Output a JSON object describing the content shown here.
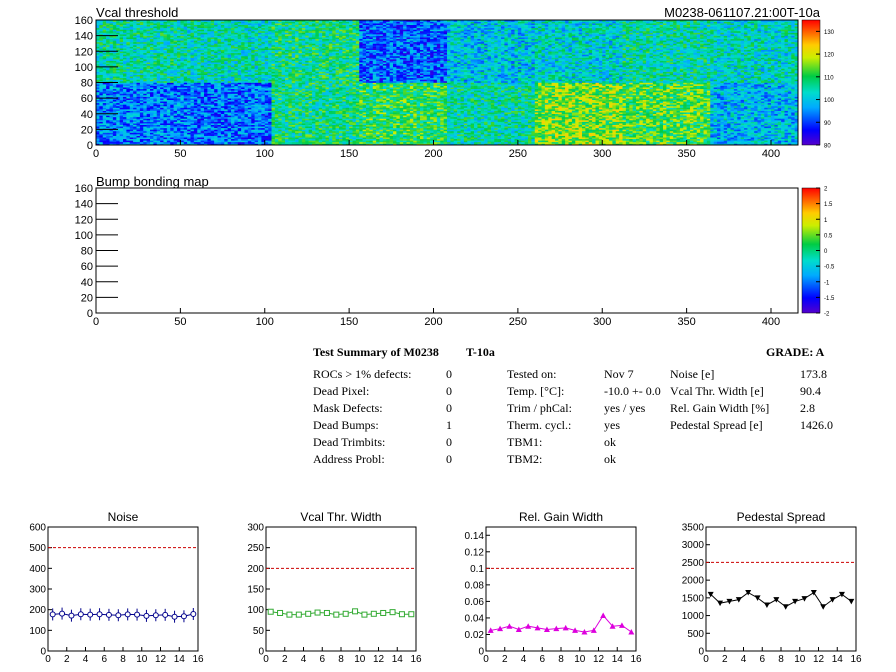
{
  "chart_data": [
    {
      "type": "heatmap",
      "title": "Vcal threshold",
      "tag": "M0238-061107.21:00T-10a",
      "xlim": [
        0,
        416
      ],
      "ylim": [
        0,
        160
      ],
      "x_ticks": [
        0,
        50,
        100,
        150,
        200,
        250,
        300,
        350,
        400
      ],
      "y_ticks": [
        0,
        20,
        40,
        60,
        80,
        100,
        120,
        140,
        160
      ],
      "palette_ticks": [
        80,
        90,
        100,
        110,
        120,
        130
      ],
      "palette_range": [
        80,
        135
      ],
      "rocs_top": [
        105,
        104,
        107,
        92,
        100,
        102,
        105,
        103
      ],
      "rocs_bottom": [
        94,
        93,
        107,
        110,
        105,
        115,
        112,
        99
      ]
    },
    {
      "type": "heatmap",
      "title": "Bump bonding map",
      "xlim": [
        0,
        416
      ],
      "ylim": [
        0,
        160
      ],
      "x_ticks": [
        0,
        50,
        100,
        150,
        200,
        250,
        300,
        350,
        400
      ],
      "y_ticks": [
        0,
        20,
        40,
        60,
        80,
        100,
        120,
        140,
        160
      ],
      "palette_ticks": [
        -2,
        -1.5,
        -1,
        -0.5,
        0,
        0.5,
        1,
        1.5,
        2
      ],
      "palette_range": [
        -2,
        2
      ]
    },
    {
      "type": "scatter",
      "title": "Noise",
      "xlim": [
        0,
        16
      ],
      "ylim": [
        0,
        600
      ],
      "x_ticks": [
        0,
        2,
        4,
        6,
        8,
        10,
        12,
        14,
        16
      ],
      "y_ticks": [
        0,
        100,
        200,
        300,
        400,
        500,
        600
      ],
      "limit": 500,
      "color": "#00008b",
      "marker": "circle",
      "x": [
        0.5,
        1.5,
        2.5,
        3.5,
        4.5,
        5.5,
        6.5,
        7.5,
        8.5,
        9.5,
        10.5,
        11.5,
        12.5,
        13.5,
        14.5,
        15.5
      ],
      "values": [
        177,
        181,
        171,
        178,
        176,
        178,
        175,
        173,
        177,
        176,
        170,
        173,
        175,
        166,
        168,
        179
      ]
    },
    {
      "type": "scatter",
      "title": "Vcal Thr. Width",
      "xlim": [
        0,
        16
      ],
      "ylim": [
        0,
        300
      ],
      "x_ticks": [
        0,
        2,
        4,
        6,
        8,
        10,
        12,
        14,
        16
      ],
      "y_ticks": [
        0,
        50,
        100,
        150,
        200,
        250,
        300
      ],
      "limit": 200,
      "color": "#33aa33",
      "marker": "square",
      "x": [
        0.5,
        1.5,
        2.5,
        3.5,
        4.5,
        5.5,
        6.5,
        7.5,
        8.5,
        9.5,
        10.5,
        11.5,
        12.5,
        13.5,
        14.5,
        15.5
      ],
      "values": [
        95,
        92,
        88,
        88,
        90,
        93,
        92,
        88,
        90,
        96,
        88,
        90,
        92,
        94,
        89,
        89
      ]
    },
    {
      "type": "scatter",
      "title": "Rel. Gain Width",
      "xlim": [
        0,
        16
      ],
      "ylim": [
        0,
        0.15
      ],
      "x_ticks": [
        0,
        2,
        4,
        6,
        8,
        10,
        12,
        14,
        16
      ],
      "y_ticks": [
        0,
        0.02,
        0.04,
        0.06,
        0.08,
        0.1,
        0.12,
        0.14
      ],
      "limit": 0.1,
      "color": "#dd00dd",
      "marker": "triangle",
      "x": [
        0.5,
        1.5,
        2.5,
        3.5,
        4.5,
        5.5,
        6.5,
        7.5,
        8.5,
        9.5,
        10.5,
        11.5,
        12.5,
        13.5,
        14.5,
        15.5
      ],
      "values": [
        0.025,
        0.027,
        0.03,
        0.026,
        0.03,
        0.028,
        0.026,
        0.027,
        0.028,
        0.025,
        0.023,
        0.025,
        0.043,
        0.03,
        0.031,
        0.023
      ]
    },
    {
      "type": "scatter",
      "title": "Pedestal Spread",
      "xlim": [
        0,
        16
      ],
      "ylim": [
        0,
        3500
      ],
      "x_ticks": [
        0,
        2,
        4,
        6,
        8,
        10,
        12,
        14,
        16
      ],
      "y_ticks": [
        0,
        500,
        1000,
        1500,
        2000,
        2500,
        3000,
        3500
      ],
      "limit": 2500,
      "color": "#000000",
      "marker": "triangle-down",
      "x": [
        0.5,
        1.5,
        2.5,
        3.5,
        4.5,
        5.5,
        6.5,
        7.5,
        8.5,
        9.5,
        10.5,
        11.5,
        12.5,
        13.5,
        14.5,
        15.5
      ],
      "values": [
        1600,
        1350,
        1400,
        1450,
        1650,
        1500,
        1300,
        1450,
        1250,
        1400,
        1480,
        1650,
        1250,
        1450,
        1600,
        1400
      ]
    }
  ],
  "summary": {
    "title": "Test Summary of M0238",
    "module_temp": "T-10a",
    "grade": "GRADE:  A",
    "defects": [
      {
        "label": "ROCs > 1% defects:",
        "value": "0"
      },
      {
        "label": "Dead Pixel:",
        "value": "0"
      },
      {
        "label": "Mask Defects:",
        "value": "0"
      },
      {
        "label": "Dead Bumps:",
        "value": "1"
      },
      {
        "label": "Dead Trimbits:",
        "value": "0"
      },
      {
        "label": "Address Probl:",
        "value": "0"
      }
    ],
    "conditions": [
      {
        "label": "Tested on:",
        "value": "Nov 7"
      },
      {
        "label": "Temp. [°C]:",
        "value": "-10.0 +- 0.0"
      },
      {
        "label": "Trim / phCal:",
        "value": "yes / yes"
      },
      {
        "label": "Therm. cycl.:",
        "value": "yes"
      },
      {
        "label": "TBM1:",
        "value": "ok"
      },
      {
        "label": "TBM2:",
        "value": "ok"
      }
    ],
    "metrics": [
      {
        "label": "Noise [e]",
        "value": "173.8"
      },
      {
        "label": "Vcal Thr. Width [e]",
        "value": "90.4"
      },
      {
        "label": "Rel. Gain Width [%]",
        "value": "2.8"
      },
      {
        "label": "Pedestal Spread [e]",
        "value": "1426.0"
      }
    ]
  },
  "colors": {
    "limit_line": "#cc0000",
    "palette_low": "#4400cc",
    "palette_high": "#ff0000"
  }
}
